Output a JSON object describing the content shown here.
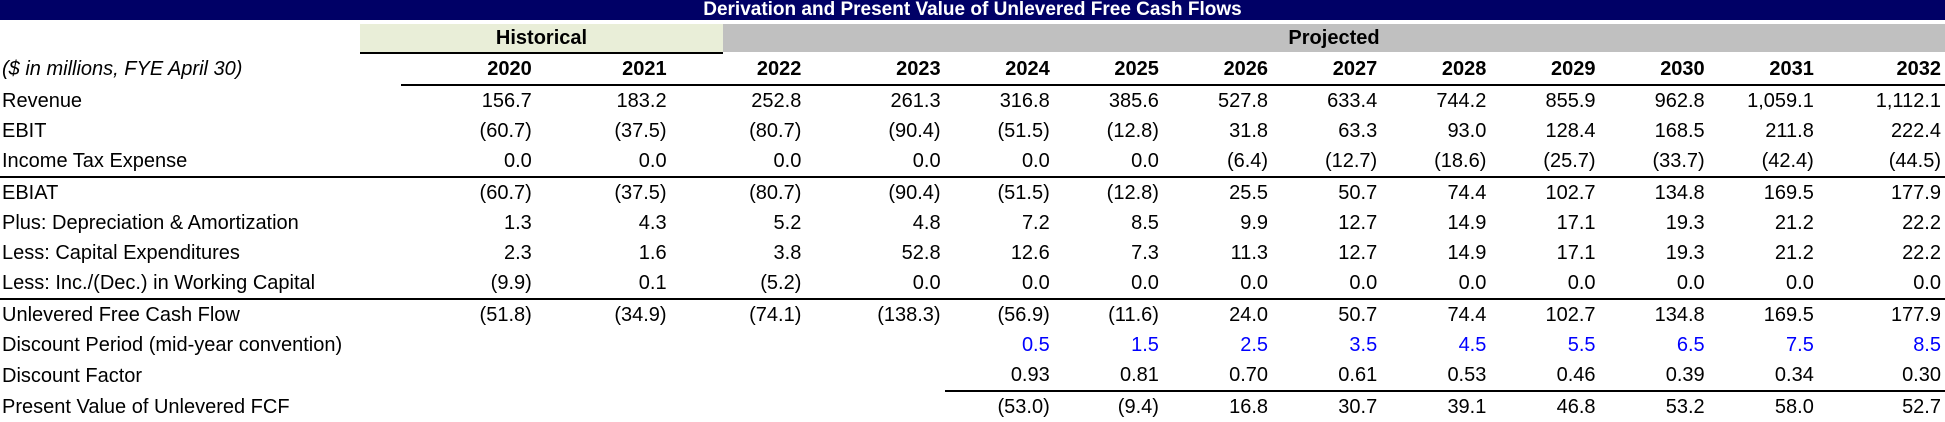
{
  "title": "Derivation and Present Value of Unlevered Free Cash Flows",
  "groups": {
    "historical": "Historical",
    "projected": "Projected"
  },
  "units_label": "($ in millions, FYE April 30)",
  "years": [
    "2020",
    "2021",
    "2022",
    "2023",
    "2024",
    "2025",
    "2026",
    "2027",
    "2028",
    "2029",
    "2030",
    "2031",
    "2032"
  ],
  "rows": [
    {
      "label": "Revenue",
      "values": [
        "156.7",
        "183.2",
        "252.8",
        "261.3",
        "316.8",
        "385.6",
        "527.8",
        "633.4",
        "744.2",
        "855.9",
        "962.8",
        "1,059.1",
        "1,112.1"
      ]
    },
    {
      "label": "EBIT",
      "values": [
        "(60.7)",
        "(37.5)",
        "(80.7)",
        "(90.4)",
        "(51.5)",
        "(12.8)",
        "31.8",
        "63.3",
        "93.0",
        "128.4",
        "168.5",
        "211.8",
        "222.4"
      ]
    },
    {
      "label": "Income Tax Expense",
      "values": [
        "0.0",
        "0.0",
        "0.0",
        "0.0",
        "0.0",
        "0.0",
        "(6.4)",
        "(12.7)",
        "(18.6)",
        "(25.7)",
        "(33.7)",
        "(42.4)",
        "(44.5)"
      ]
    },
    {
      "label": "EBIAT",
      "values": [
        "(60.7)",
        "(37.5)",
        "(80.7)",
        "(90.4)",
        "(51.5)",
        "(12.8)",
        "25.5",
        "50.7",
        "74.4",
        "102.7",
        "134.8",
        "169.5",
        "177.9"
      ]
    },
    {
      "label": "Plus: Depreciation & Amortization",
      "values": [
        "1.3",
        "4.3",
        "5.2",
        "4.8",
        "7.2",
        "8.5",
        "9.9",
        "12.7",
        "14.9",
        "17.1",
        "19.3",
        "21.2",
        "22.2"
      ]
    },
    {
      "label": "Less: Capital Expenditures",
      "values": [
        "2.3",
        "1.6",
        "3.8",
        "52.8",
        "12.6",
        "7.3",
        "11.3",
        "12.7",
        "14.9",
        "17.1",
        "19.3",
        "21.2",
        "22.2"
      ]
    },
    {
      "label": "Less: Inc./(Dec.) in Working Capital",
      "values": [
        "(9.9)",
        "0.1",
        "(5.2)",
        "0.0",
        "0.0",
        "0.0",
        "0.0",
        "0.0",
        "0.0",
        "0.0",
        "0.0",
        "0.0",
        "0.0"
      ]
    },
    {
      "label": "Unlevered Free Cash Flow",
      "values": [
        "(51.8)",
        "(34.9)",
        "(74.1)",
        "(138.3)",
        "(56.9)",
        "(11.6)",
        "24.0",
        "50.7",
        "74.4",
        "102.7",
        "134.8",
        "169.5",
        "177.9"
      ]
    },
    {
      "label": "Discount Period (mid-year convention)",
      "values": [
        "",
        "",
        "",
        "",
        "0.5",
        "1.5",
        "2.5",
        "3.5",
        "4.5",
        "5.5",
        "6.5",
        "7.5",
        "8.5"
      ]
    },
    {
      "label": "Discount Factor",
      "values": [
        "",
        "",
        "",
        "",
        "0.93",
        "0.81",
        "0.70",
        "0.61",
        "0.53",
        "0.46",
        "0.39",
        "0.34",
        "0.30"
      ]
    },
    {
      "label": "Present Value of Unlevered FCF",
      "values": [
        "",
        "",
        "",
        "",
        "(53.0)",
        "(9.4)",
        "16.8",
        "30.7",
        "39.1",
        "46.8",
        "53.2",
        "58.0",
        "52.7"
      ]
    }
  ],
  "colors": {
    "title_bg": "#000066",
    "historical_bg": "#e9eed8",
    "projected_bg": "#c0c0c0",
    "input_font": "#0000ff"
  }
}
